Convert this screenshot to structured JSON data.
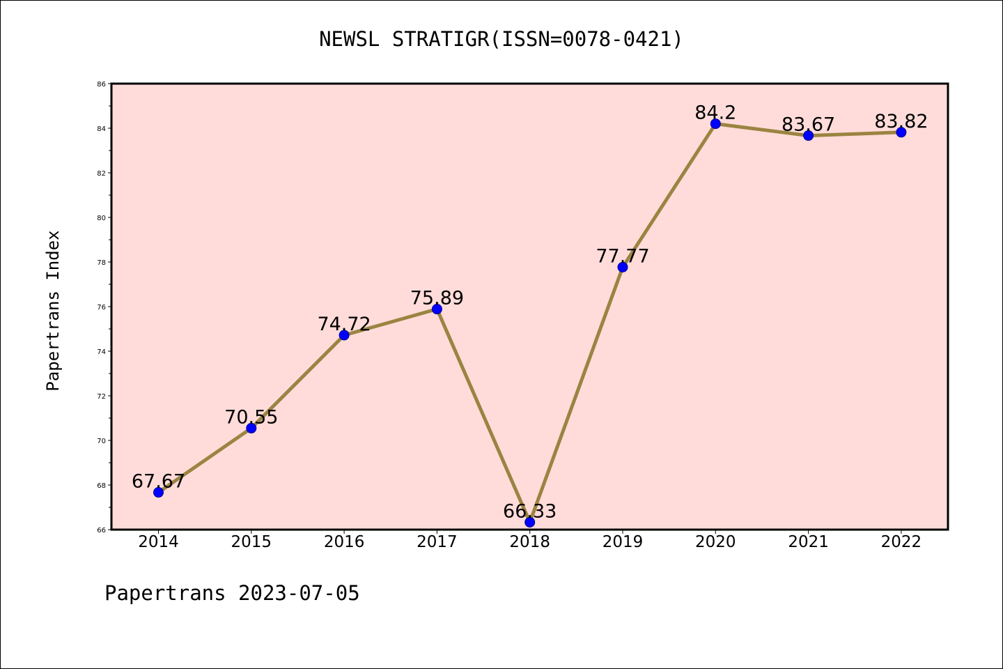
{
  "chart_data": {
    "type": "line",
    "title": "NEWSL STRATIGR(ISSN=0078-0421)",
    "xlabel": "",
    "ylabel": "Papertrans Index",
    "categories": [
      "2014",
      "2015",
      "2016",
      "2017",
      "2018",
      "2019",
      "2020",
      "2021",
      "2022"
    ],
    "values": [
      67.67,
      70.55,
      74.72,
      75.89,
      66.33,
      77.77,
      84.2,
      83.67,
      83.82
    ],
    "data_labels": [
      "67.67",
      "70.55",
      "74.72",
      "75.89",
      "66.33",
      "77.77",
      "84.2",
      "83.67",
      "83.82"
    ],
    "ylim": [
      66,
      86
    ],
    "yticks": [
      "66",
      "68",
      "70",
      "72",
      "74",
      "76",
      "78",
      "80",
      "82",
      "84",
      "86"
    ],
    "grid": false,
    "line_color": "#9a8441",
    "marker_color": "#0000ff",
    "plot_background": "#ffdcda"
  },
  "footer": {
    "text": "Papertrans 2023-07-05"
  }
}
